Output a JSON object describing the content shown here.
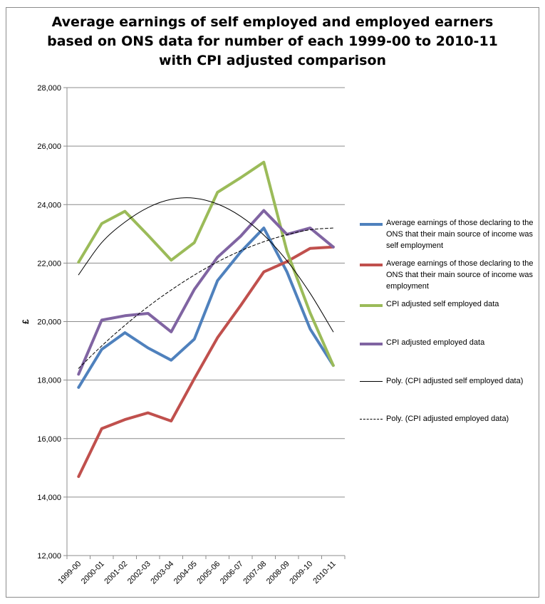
{
  "chart_data": {
    "type": "line",
    "title": [
      "Average earnings of self employed and employed earners",
      "based on ONS data for number of each 1999-00 to 2010-11",
      "with CPI adjusted comparison"
    ],
    "xlabel": "",
    "ylabel": "£",
    "ylim": [
      12000,
      28000
    ],
    "yticks": [
      12000,
      14000,
      16000,
      18000,
      20000,
      22000,
      24000,
      26000,
      28000
    ],
    "ytick_labels": [
      "12,000",
      "14,000",
      "16,000",
      "18,000",
      "20,000",
      "22,000",
      "24,000",
      "26,000",
      "28,000"
    ],
    "categories": [
      "1999-00",
      "2000-01",
      "2001-02",
      "2002-03",
      "2003-04",
      "2004-05",
      "2005-06",
      "2006-07",
      "2007-08",
      "2008-09",
      "2009-10",
      "2010-11"
    ],
    "grid": "horizontal",
    "legend_position": "right",
    "series": [
      {
        "name": "Average earnings of those declaring to the ONS that their main source of income was self employment",
        "color": "#4f81bd",
        "style": "solid",
        "width": 4,
        "values": [
          17750,
          19050,
          19620,
          19100,
          18680,
          19400,
          21400,
          22380,
          23200,
          21700,
          19750,
          18500
        ]
      },
      {
        "name": "Average earnings of those declaring to the ONS that their main source of income was employment",
        "color": "#c0504d",
        "style": "solid",
        "width": 4,
        "values": [
          14700,
          16340,
          16650,
          16880,
          16600,
          18050,
          19450,
          20550,
          21700,
          22050,
          22500,
          22550
        ]
      },
      {
        "name": "CPI adjusted self employed data",
        "color": "#9bbb59",
        "style": "solid",
        "width": 4,
        "values": [
          22030,
          23350,
          23770,
          22950,
          22100,
          22700,
          24420,
          24920,
          25450,
          22400,
          20300,
          18500
        ]
      },
      {
        "name": "CPI adjusted employed data",
        "color": "#8064a2",
        "style": "solid",
        "width": 4,
        "values": [
          18200,
          20050,
          20200,
          20280,
          19650,
          21100,
          22200,
          22920,
          23800,
          22980,
          23200,
          22550
        ]
      },
      {
        "name": "Poly. (CPI adjusted self employed data)",
        "color": "#000000",
        "style": "solid",
        "width": 1,
        "trendline": true,
        "values": [
          21600,
          22700,
          23400,
          23900,
          24180,
          24220,
          24020,
          23600,
          22960,
          22080,
          20970,
          19650
        ]
      },
      {
        "name": "Poly. (CPI adjusted employed data)",
        "color": "#000000",
        "style": "dashed",
        "width": 1,
        "trendline": true,
        "values": [
          18400,
          19170,
          19870,
          20510,
          21080,
          21590,
          22040,
          22420,
          22730,
          22970,
          23140,
          23200
        ]
      }
    ]
  }
}
